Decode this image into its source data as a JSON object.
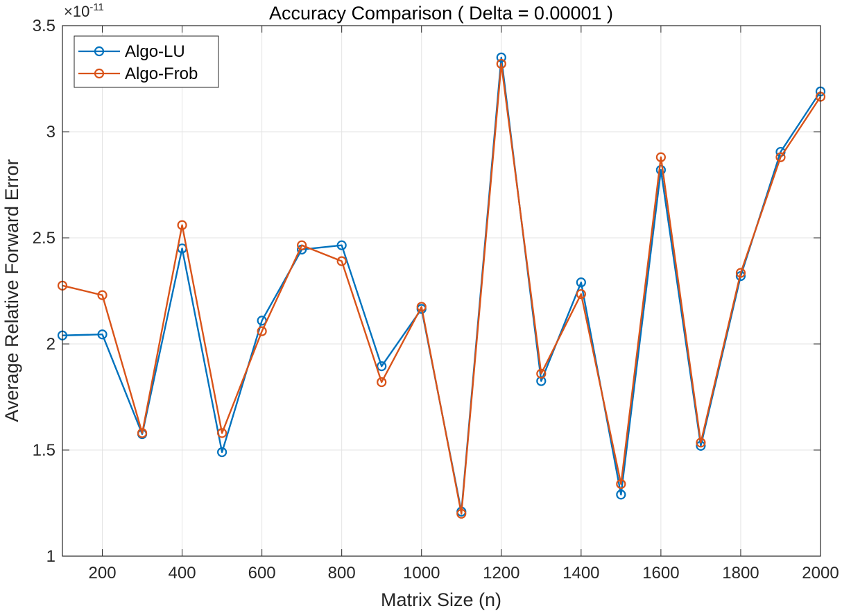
{
  "chart_data": {
    "type": "line",
    "title": "Accuracy Comparison ( Delta = 0.00001 )",
    "xlabel": "Matrix Size (n)",
    "ylabel": "Average Relative Forward Error",
    "y_multiplier_base": "×10",
    "y_multiplier_exponent": "-11",
    "xlim": [
      100,
      2000
    ],
    "ylim": [
      1,
      3.5
    ],
    "xticks": [
      200,
      400,
      600,
      800,
      1000,
      1200,
      1400,
      1600,
      1800,
      2000
    ],
    "yticks": [
      1,
      1.5,
      2,
      2.5,
      3,
      3.5
    ],
    "ytick_labels": [
      "1",
      "1.5",
      "2",
      "2.5",
      "3",
      "3.5"
    ],
    "grid": true,
    "legend_position": "top-left",
    "x": [
      100,
      200,
      300,
      400,
      500,
      600,
      700,
      800,
      900,
      1000,
      1100,
      1200,
      1300,
      1400,
      1500,
      1600,
      1700,
      1800,
      1900,
      2000
    ],
    "series": [
      {
        "name": "Algo-LU",
        "color": "#0072BD",
        "values": [
          2.04,
          2.045,
          1.575,
          2.45,
          1.49,
          2.11,
          2.445,
          2.465,
          1.895,
          2.165,
          1.21,
          3.35,
          1.825,
          2.29,
          1.29,
          2.82,
          1.52,
          2.32,
          2.905,
          3.19
        ]
      },
      {
        "name": "Algo-Frob",
        "color": "#D95319",
        "values": [
          2.275,
          2.23,
          1.58,
          2.56,
          1.58,
          2.06,
          2.465,
          2.39,
          1.82,
          2.175,
          1.2,
          3.32,
          1.86,
          2.235,
          1.34,
          2.88,
          1.535,
          2.335,
          2.88,
          3.165
        ]
      }
    ]
  }
}
